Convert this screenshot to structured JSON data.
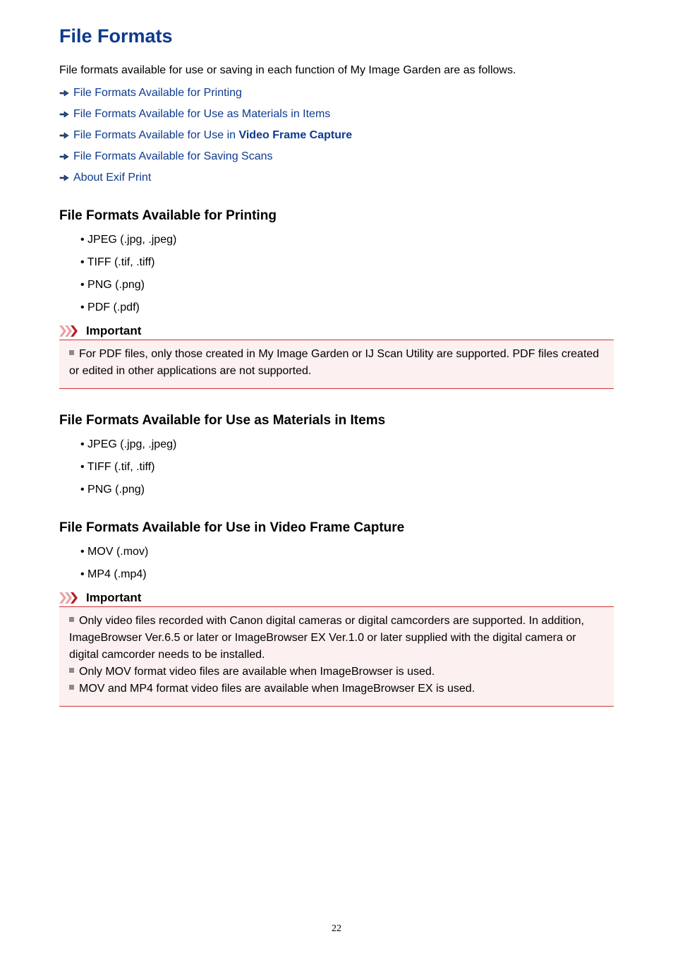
{
  "title": "File Formats",
  "intro": "File formats available for use or saving in each function of My Image Garden are as follows.",
  "colors": {
    "title_color": "#0d3a8f",
    "link_color": "#0d3a8f",
    "text_color": "#000000",
    "important_border": "#cc3333",
    "important_bg": "#fcf0f0",
    "bullet_sq": "#8a8a8a",
    "chevron_dark": "#b41e24",
    "chevron_light": "#e7a3a5",
    "arrow_outline": "#111111",
    "arrow_fill": "#1c4fa1"
  },
  "links": [
    {
      "text": "File Formats Available for Printing",
      "bold_part": ""
    },
    {
      "text": "File Formats Available for Use as Materials in Items",
      "bold_part": ""
    },
    {
      "text": "File Formats Available for Use in ",
      "bold_part": "Video Frame Capture"
    },
    {
      "text": "File Formats Available for Saving Scans",
      "bold_part": ""
    },
    {
      "text": "About Exif Print",
      "bold_part": ""
    }
  ],
  "sections": {
    "printing": {
      "heading": "File Formats Available for Printing",
      "items": [
        "JPEG (.jpg, .jpeg)",
        "TIFF (.tif, .tiff)",
        "PNG (.png)",
        "PDF (.pdf)"
      ]
    },
    "materials": {
      "heading": "File Formats Available for Use as Materials in Items",
      "items": [
        "JPEG (.jpg, .jpeg)",
        "TIFF (.tif, .tiff)",
        "PNG (.png)"
      ]
    },
    "video": {
      "heading": "File Formats Available for Use in Video Frame Capture",
      "items": [
        "MOV (.mov)",
        "MP4 (.mp4)"
      ]
    }
  },
  "important_label": "Important",
  "important1_text": "For PDF files, only those created in My Image Garden or IJ Scan Utility are supported. PDF files created or edited in other applications are not supported.",
  "important2_items": [
    "Only video files recorded with Canon digital cameras or digital camcorders are supported. In addition, ImageBrowser Ver.6.5 or later or ImageBrowser EX Ver.1.0 or later supplied with the digital camera or digital camcorder needs to be installed.",
    "Only MOV format video files are available when ImageBrowser is used.",
    "MOV and MP4 format video files are available when ImageBrowser EX is used."
  ],
  "page_number": "22"
}
